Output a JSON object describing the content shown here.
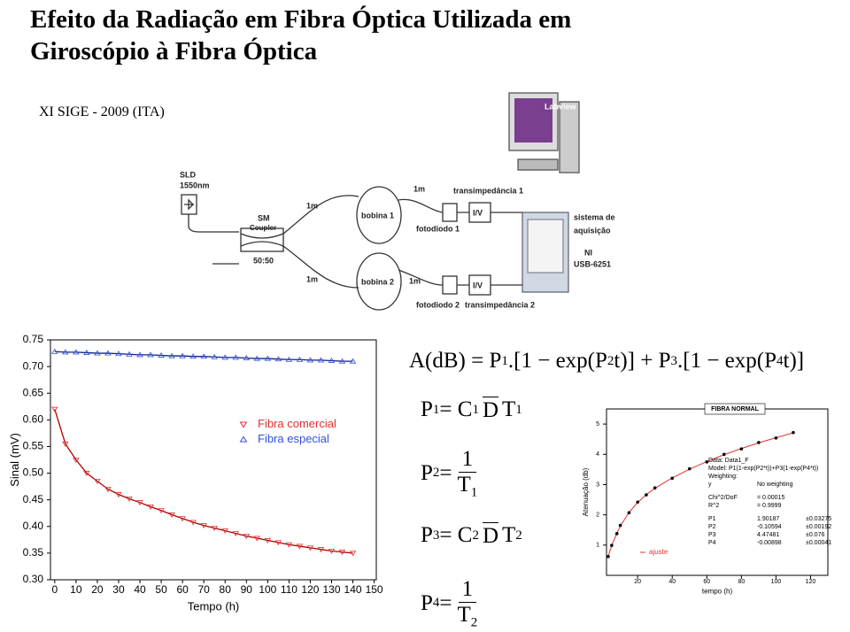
{
  "title_lines": [
    "Efeito da Radiação em Fibra Óptica Utilizada em",
    "Giroscópio à Fibra Óptica"
  ],
  "subtitle": "XI  SIGE - 2009 (ITA)",
  "diagram": {
    "sld": "SLD",
    "sld_wavelength": "1550nm",
    "coupler": [
      "SM",
      "Coupler"
    ],
    "ratio": "50:50",
    "fiber_lengths": [
      "1m",
      "1m",
      "1m",
      "1m"
    ],
    "coils": [
      "bobina 1",
      "bobina 2"
    ],
    "photodiodes": [
      "fotodiodo 1",
      "fotodiodo 2"
    ],
    "transimpedance": [
      "transimpedância 1",
      "transimpedância 2"
    ],
    "converters": [
      "I/V",
      "I/V"
    ],
    "acquisition": [
      "sistema de",
      "aquisição"
    ],
    "board": [
      "NI",
      "USB-6251"
    ],
    "software": "Labview"
  },
  "chart_data": [
    {
      "type": "scatter",
      "xlabel": "Tempo (h)",
      "ylabel": "Sinal (mV)",
      "xlim": [
        -2,
        151
      ],
      "ylim": [
        0.3,
        0.75
      ],
      "xticks": [
        0,
        10,
        20,
        30,
        40,
        50,
        60,
        70,
        80,
        90,
        100,
        110,
        120,
        130,
        140,
        150
      ],
      "yticks": [
        {
          "value": 0.3,
          "label": "0.30"
        },
        0.35,
        {
          "value": 0.4,
          "label": "0.40"
        },
        0.45,
        {
          "value": 0.5,
          "label": "0.50"
        },
        0.55,
        {
          "value": 0.6,
          "label": "0.60"
        },
        0.65,
        {
          "value": 0.7,
          "label": "0.70"
        },
        0.75
      ],
      "legend": "center-right",
      "x": [
        0,
        5,
        10,
        15,
        20,
        25,
        30,
        35,
        40,
        45,
        50,
        55,
        60,
        65,
        70,
        75,
        80,
        85,
        90,
        95,
        100,
        105,
        110,
        115,
        120,
        125,
        130,
        135,
        140
      ],
      "series": [
        {
          "name": "Fibra comercial",
          "color": "#e03030",
          "line_color": "#b00000",
          "marker": "triangle-down",
          "values": [
            0.62,
            0.555,
            0.525,
            0.5,
            0.485,
            0.47,
            0.46,
            0.452,
            0.445,
            0.437,
            0.43,
            0.422,
            0.415,
            0.408,
            0.402,
            0.397,
            0.392,
            0.387,
            0.382,
            0.378,
            0.374,
            0.37,
            0.366,
            0.363,
            0.36,
            0.357,
            0.354,
            0.352,
            0.35
          ]
        },
        {
          "name": "Fibra especial",
          "color": "#3050e0",
          "line_color": "#10208a",
          "marker": "triangle-up",
          "values": [
            0.728,
            0.727,
            0.727,
            0.726,
            0.725,
            0.725,
            0.724,
            0.723,
            0.722,
            0.722,
            0.721,
            0.72,
            0.72,
            0.719,
            0.719,
            0.718,
            0.717,
            0.717,
            0.716,
            0.715,
            0.715,
            0.714,
            0.713,
            0.713,
            0.712,
            0.712,
            0.711,
            0.71,
            0.71
          ]
        }
      ]
    },
    {
      "type": "scatter",
      "title": "FIBRA NORMAL",
      "xlabel": "tempo (h)",
      "ylabel": "Atenuação (db)",
      "xlim": [
        2,
        130
      ],
      "ylim": [
        0,
        5.5
      ],
      "xticks": [
        20,
        40,
        60,
        80,
        100,
        120
      ],
      "yticks": [
        1,
        2,
        3,
        4,
        5
      ],
      "x": [
        3,
        5,
        8,
        10,
        15,
        20,
        25,
        30,
        40,
        50,
        60,
        70,
        80,
        90,
        100,
        110
      ],
      "color": "#000000",
      "values": [
        0.62,
        0.99,
        1.38,
        1.65,
        2.07,
        2.42,
        2.66,
        2.89,
        3.21,
        3.52,
        3.75,
        4.0,
        4.18,
        4.39,
        4.54,
        4.72
      ],
      "fit": {
        "name": "ajuste",
        "color": "#e03030",
        "values": [
          0.64,
          0.98,
          1.4,
          1.63,
          2.08,
          2.41,
          2.67,
          2.88,
          3.22,
          3.51,
          3.76,
          3.99,
          4.19,
          4.38,
          4.55,
          4.71
        ]
      },
      "annotation_lines": [
        [
          "Data: Data1_F"
        ],
        [
          "Model: P1(1-exp(P2*t))+P3(1-exp(P4*t))"
        ],
        [
          "Weighting:"
        ],
        [
          "y",
          "No weighting"
        ],
        [
          "Chi^2/DoF",
          "= 0.00015"
        ],
        [
          "R^2",
          "= 0.9999"
        ],
        [
          "P1",
          "1.90187",
          "±0.03275"
        ],
        [
          "P2",
          "-0.10594",
          "±0.00192"
        ],
        [
          "P3",
          "4.47481",
          "±0.076"
        ],
        [
          "P4",
          "-0.00898",
          "±0.00041"
        ]
      ]
    }
  ],
  "equations": [
    {
      "parts": [
        {
          "text": "A(dB) = P"
        },
        {
          "text": "1",
          "style": "sub"
        },
        {
          "text": ".[1 − exp(P"
        },
        {
          "text": "2",
          "style": "sub"
        },
        {
          "text": "t)] + P"
        },
        {
          "text": "3",
          "style": "sub"
        },
        {
          "text": ".[1 − exp(P"
        },
        {
          "text": "4",
          "style": "sub"
        },
        {
          "text": "t)]"
        }
      ]
    },
    {
      "parts": [
        {
          "text": "P"
        },
        {
          "text": "1",
          "style": "sub"
        },
        {
          "text": " = C"
        },
        {
          "text": "1",
          "style": "sub"
        },
        {
          "text": "D",
          "style": "over"
        },
        {
          "text": "T"
        },
        {
          "text": "1",
          "style": "sub"
        }
      ]
    },
    {
      "parts": [
        {
          "text": "P"
        },
        {
          "text": "2",
          "style": "sub"
        },
        {
          "text": " = "
        }
      ],
      "numerator": "1",
      "denominator": [
        {
          "text": "T"
        },
        {
          "text": "1",
          "style": "sub"
        }
      ]
    },
    {
      "parts": [
        {
          "text": "P"
        },
        {
          "text": "3",
          "style": "sub"
        },
        {
          "text": " = C"
        },
        {
          "text": "2",
          "style": "sub"
        },
        {
          "text": "D",
          "style": "over"
        },
        {
          "text": "T"
        },
        {
          "text": "2",
          "style": "sub"
        }
      ]
    },
    {
      "parts": [
        {
          "text": "P"
        },
        {
          "text": "4",
          "style": "sub"
        },
        {
          "text": " = "
        }
      ],
      "numerator": "1",
      "denominator": [
        {
          "text": "T"
        },
        {
          "text": "2",
          "style": "sub"
        }
      ]
    }
  ]
}
